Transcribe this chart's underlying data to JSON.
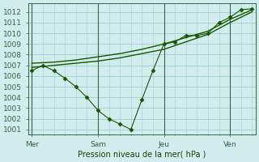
{
  "bg_color": "#d0ecec",
  "grid_color": "#a0cccc",
  "line_color": "#1a5500",
  "marker_color": "#1a5500",
  "xlabel": "Pression niveau de la mer( hPa )",
  "ylim": [
    1000.5,
    1012.8
  ],
  "yticks": [
    1001,
    1002,
    1003,
    1004,
    1005,
    1006,
    1007,
    1008,
    1009,
    1010,
    1011,
    1012
  ],
  "xtick_labels": [
    "Mer",
    "Sam",
    "Jeu",
    "Ven"
  ],
  "xtick_positions": [
    0,
    36,
    72,
    108
  ],
  "xlim": [
    -2,
    122
  ],
  "vline_positions": [
    0,
    36,
    72,
    108
  ],
  "series_dotted": {
    "x": [
      0,
      6,
      12,
      18,
      24,
      30,
      36,
      42,
      48,
      54,
      60,
      66,
      72,
      78,
      84,
      90,
      96,
      102,
      108,
      114,
      120
    ],
    "y": [
      1006.5,
      1007.0,
      1006.5,
      1005.8,
      1005.0,
      1004.0,
      1002.8,
      1002.0,
      1001.5,
      1001.0,
      1003.8,
      1006.5,
      1009.0,
      1009.2,
      1009.8,
      1009.8,
      1010.0,
      1011.0,
      1011.5,
      1012.2,
      1012.3
    ],
    "marker": "D",
    "markersize": 2.5
  },
  "series_upper": {
    "x": [
      0,
      12,
      24,
      36,
      48,
      60,
      72,
      84,
      96,
      108,
      120
    ],
    "y": [
      1007.2,
      1007.3,
      1007.5,
      1007.8,
      1008.1,
      1008.5,
      1009.0,
      1009.6,
      1010.2,
      1011.3,
      1012.2
    ]
  },
  "series_lower": {
    "x": [
      0,
      12,
      24,
      36,
      48,
      60,
      72,
      84,
      96,
      108,
      120
    ],
    "y": [
      1006.8,
      1007.0,
      1007.2,
      1007.4,
      1007.7,
      1008.1,
      1008.5,
      1009.2,
      1009.9,
      1011.0,
      1012.0
    ]
  }
}
